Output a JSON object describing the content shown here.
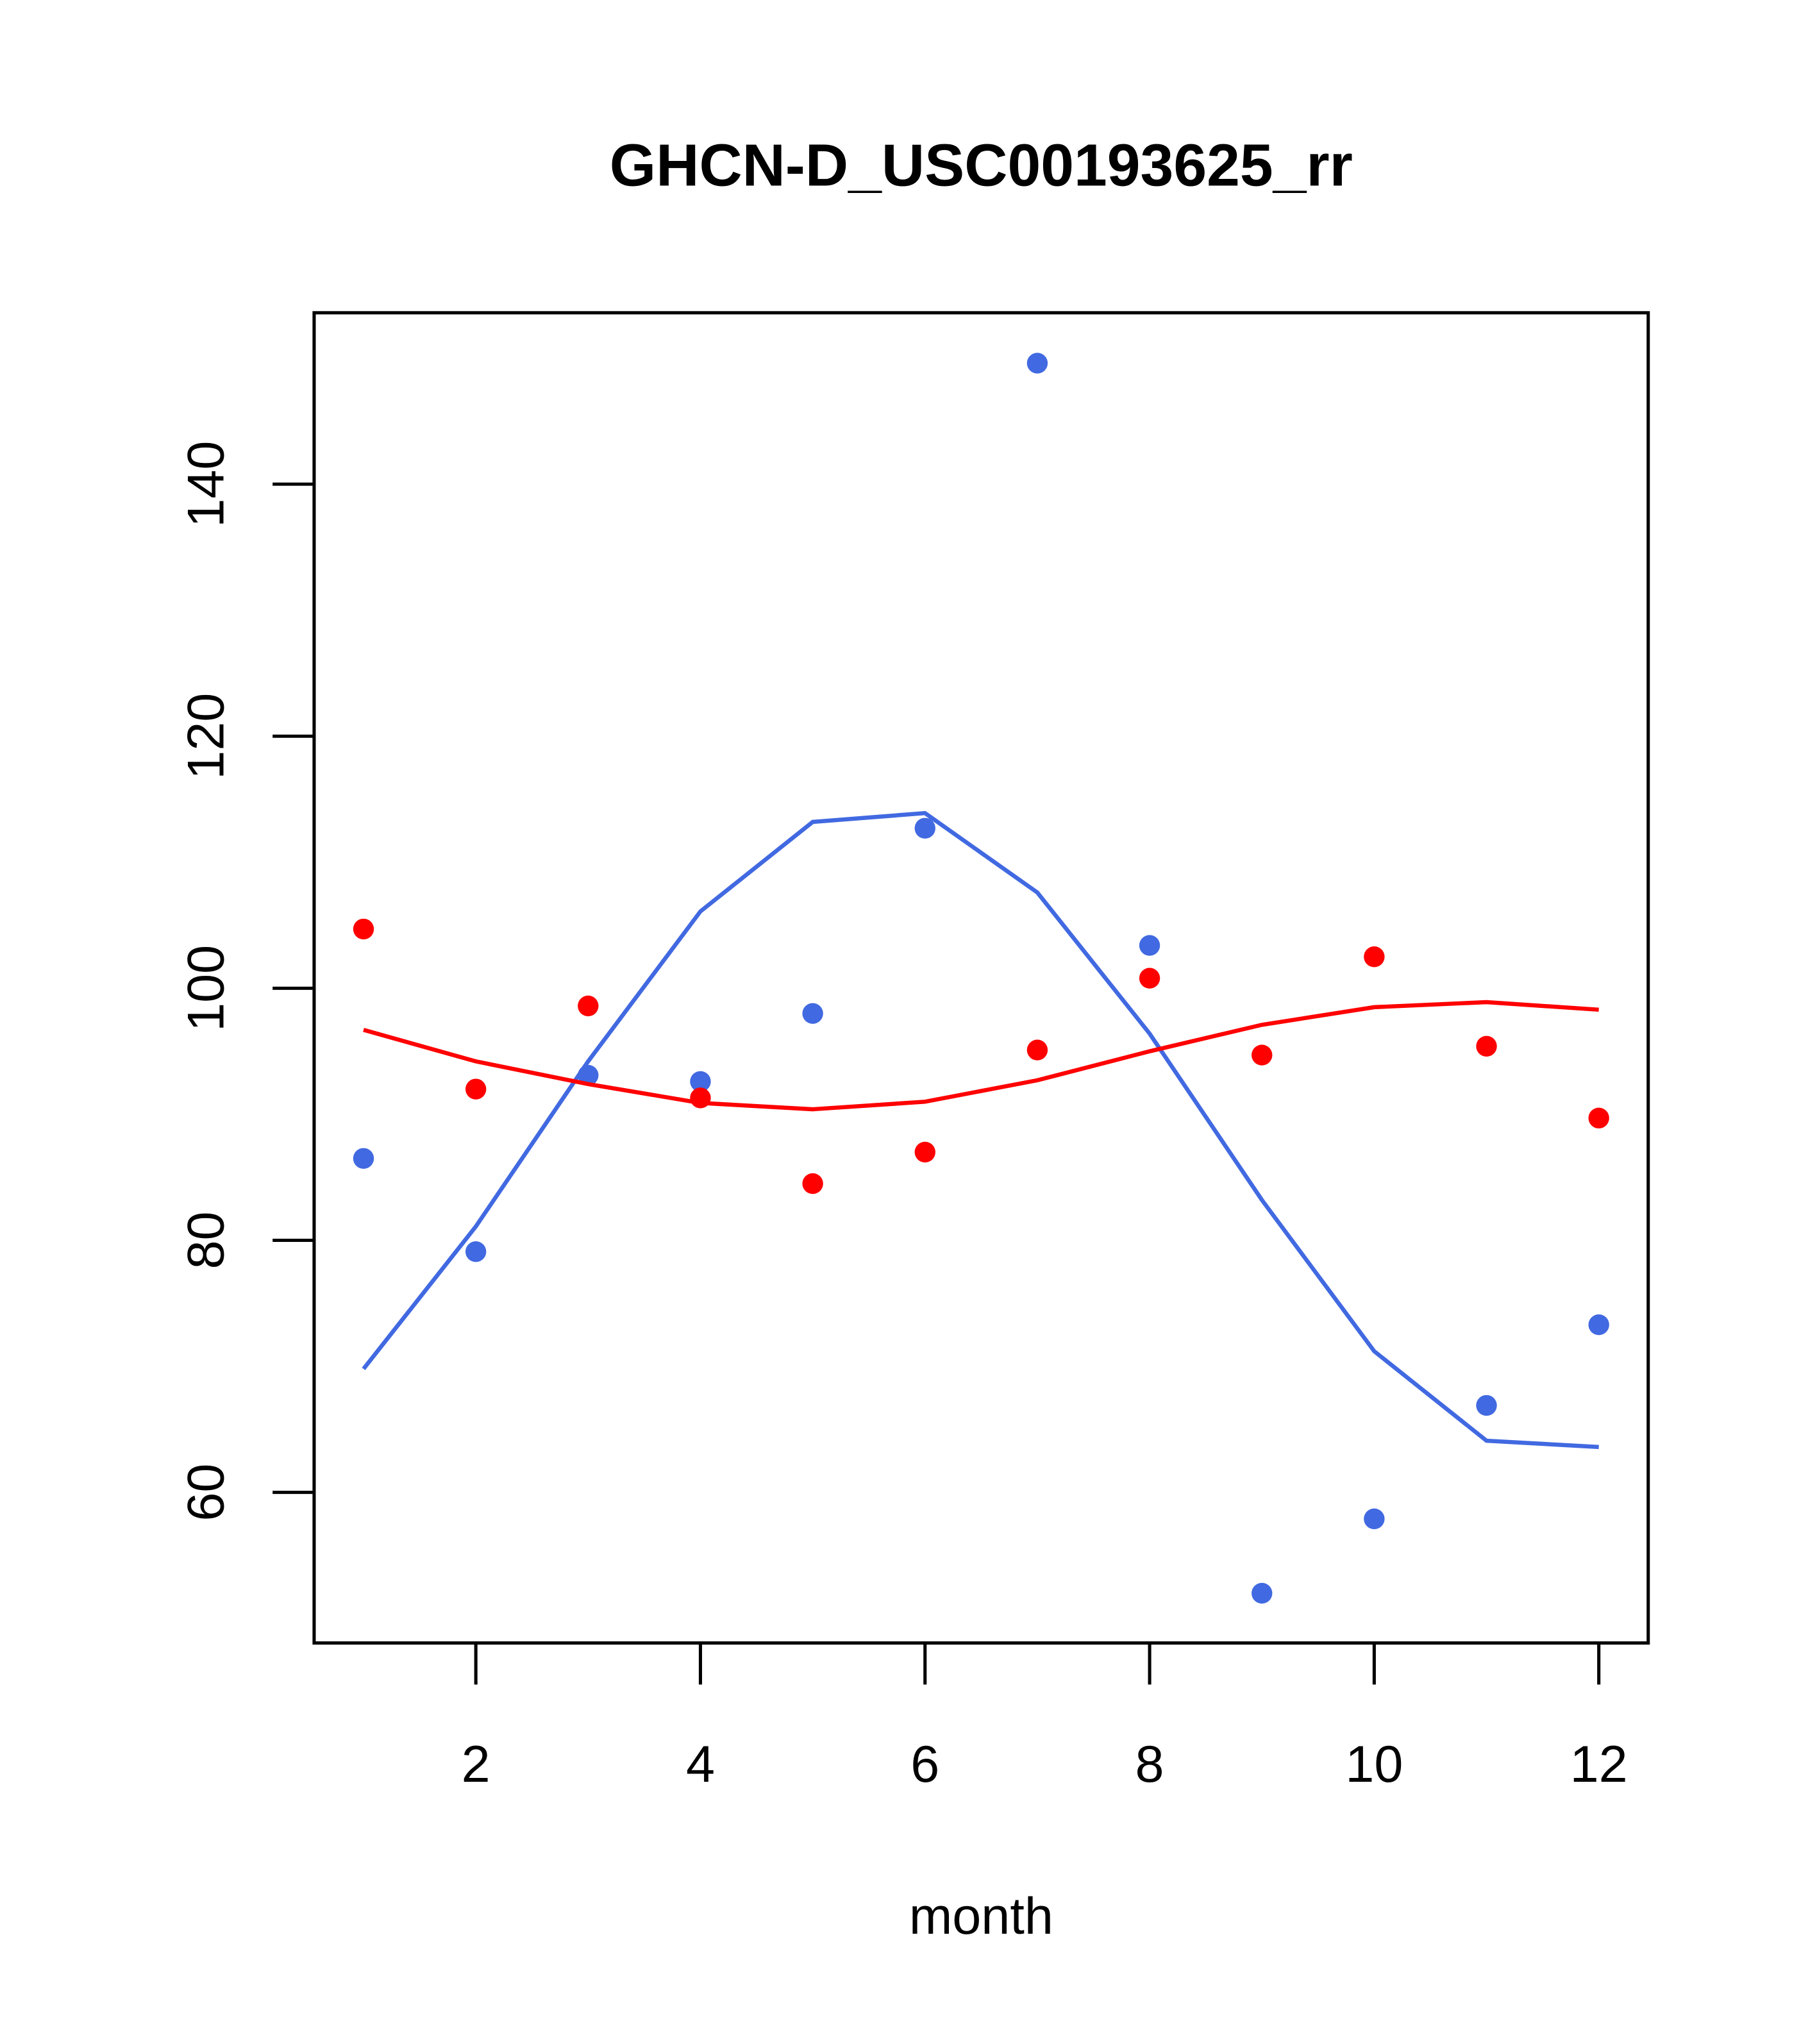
{
  "chart_data": {
    "type": "scatter",
    "title": "GHCN-D_USC00193625_rr",
    "xlabel": "month",
    "ylabel": "",
    "xlim": [
      0.56,
      12.44
    ],
    "ylim": [
      48.05,
      153.6
    ],
    "xticks": [
      2,
      4,
      6,
      8,
      10,
      12
    ],
    "yticks": [
      60,
      80,
      100,
      120,
      140
    ],
    "grid": false,
    "x": [
      1,
      2,
      3,
      4,
      5,
      6,
      7,
      8,
      9,
      10,
      11,
      12
    ],
    "series": [
      {
        "name": "blue points",
        "kind": "points",
        "color": "#4169E1",
        "values": [
          86.5,
          79.1,
          93.1,
          92.6,
          98.0,
          112.7,
          149.6,
          103.4,
          52.0,
          57.9,
          66.9,
          73.3
        ]
      },
      {
        "name": "blue line",
        "kind": "line",
        "color": "#4169E1",
        "values": [
          69.8,
          81.1,
          94.2,
          106.1,
          113.2,
          113.9,
          107.6,
          96.4,
          83.2,
          71.2,
          64.1,
          63.6
        ]
      },
      {
        "name": "red points",
        "kind": "points",
        "color": "#FF0000",
        "values": [
          104.7,
          92.0,
          98.6,
          91.3,
          84.5,
          87.0,
          95.1,
          100.8,
          94.7,
          102.5,
          95.4,
          89.7
        ]
      },
      {
        "name": "red line",
        "kind": "line",
        "color": "#FF0000",
        "values": [
          96.7,
          94.2,
          92.4,
          90.9,
          90.4,
          91.0,
          92.7,
          95.0,
          97.1,
          98.5,
          98.9,
          98.3
        ]
      }
    ]
  }
}
